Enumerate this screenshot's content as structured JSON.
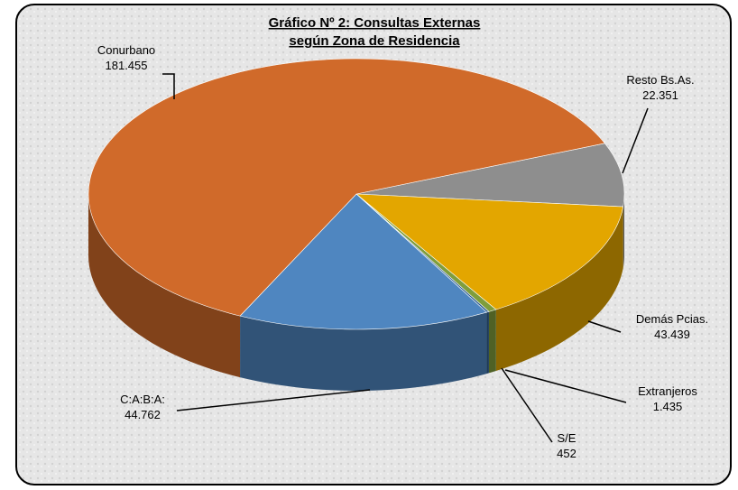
{
  "chart_data": {
    "type": "pie3d",
    "title": [
      "Gráfico Nº 2: Consultas Externas",
      "según Zona de Residencia"
    ],
    "categories": [
      "Resto Bs.As.",
      "Demás Pcias.",
      "Extranjeros",
      "S/E",
      "C:A:B:A:",
      "Conurbano"
    ],
    "values": [
      22351,
      43439,
      1435,
      452,
      44762,
      181455
    ],
    "value_labels": [
      "22.351",
      "43.439",
      "1.435",
      "452",
      "44.762",
      "181.455"
    ],
    "colors": [
      "#8e8e8e",
      "#e3a600",
      "#7f9d3c",
      "#2f5d8e",
      "#4f86c0",
      "#d06a2a"
    ]
  }
}
